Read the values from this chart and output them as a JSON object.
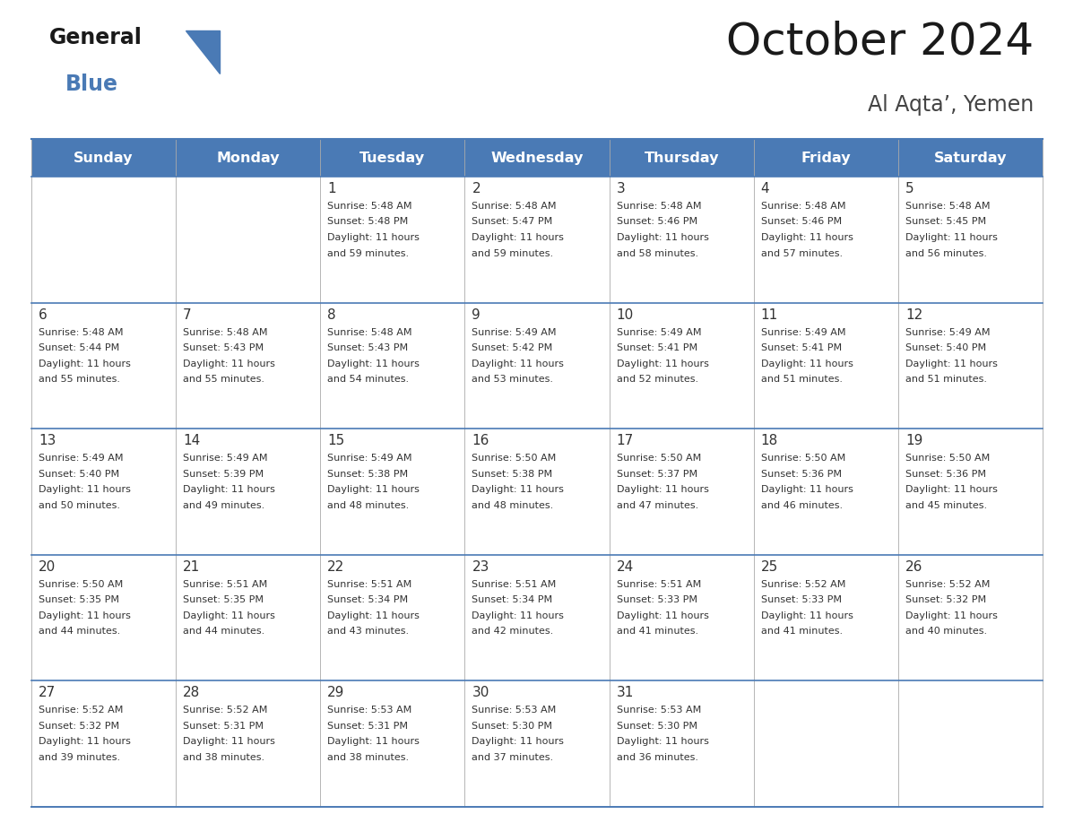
{
  "title": "October 2024",
  "subtitle": "Al Aqta’, Yemen",
  "header_bg": "#4a7ab5",
  "header_text_color": "#ffffff",
  "cell_bg": "#ffffff",
  "text_color": "#333333",
  "line_color": "#4a7ab5",
  "days_of_week": [
    "Sunday",
    "Monday",
    "Tuesday",
    "Wednesday",
    "Thursday",
    "Friday",
    "Saturday"
  ],
  "calendar": [
    [
      {
        "day": "",
        "sunrise": "",
        "sunset": "",
        "daylight": ""
      },
      {
        "day": "",
        "sunrise": "",
        "sunset": "",
        "daylight": ""
      },
      {
        "day": "1",
        "sunrise": "5:48 AM",
        "sunset": "5:48 PM",
        "daylight": "11 hours and 59 minutes."
      },
      {
        "day": "2",
        "sunrise": "5:48 AM",
        "sunset": "5:47 PM",
        "daylight": "11 hours and 59 minutes."
      },
      {
        "day": "3",
        "sunrise": "5:48 AM",
        "sunset": "5:46 PM",
        "daylight": "11 hours and 58 minutes."
      },
      {
        "day": "4",
        "sunrise": "5:48 AM",
        "sunset": "5:46 PM",
        "daylight": "11 hours and 57 minutes."
      },
      {
        "day": "5",
        "sunrise": "5:48 AM",
        "sunset": "5:45 PM",
        "daylight": "11 hours and 56 minutes."
      }
    ],
    [
      {
        "day": "6",
        "sunrise": "5:48 AM",
        "sunset": "5:44 PM",
        "daylight": "11 hours and 55 minutes."
      },
      {
        "day": "7",
        "sunrise": "5:48 AM",
        "sunset": "5:43 PM",
        "daylight": "11 hours and 55 minutes."
      },
      {
        "day": "8",
        "sunrise": "5:48 AM",
        "sunset": "5:43 PM",
        "daylight": "11 hours and 54 minutes."
      },
      {
        "day": "9",
        "sunrise": "5:49 AM",
        "sunset": "5:42 PM",
        "daylight": "11 hours and 53 minutes."
      },
      {
        "day": "10",
        "sunrise": "5:49 AM",
        "sunset": "5:41 PM",
        "daylight": "11 hours and 52 minutes."
      },
      {
        "day": "11",
        "sunrise": "5:49 AM",
        "sunset": "5:41 PM",
        "daylight": "11 hours and 51 minutes."
      },
      {
        "day": "12",
        "sunrise": "5:49 AM",
        "sunset": "5:40 PM",
        "daylight": "11 hours and 51 minutes."
      }
    ],
    [
      {
        "day": "13",
        "sunrise": "5:49 AM",
        "sunset": "5:40 PM",
        "daylight": "11 hours and 50 minutes."
      },
      {
        "day": "14",
        "sunrise": "5:49 AM",
        "sunset": "5:39 PM",
        "daylight": "11 hours and 49 minutes."
      },
      {
        "day": "15",
        "sunrise": "5:49 AM",
        "sunset": "5:38 PM",
        "daylight": "11 hours and 48 minutes."
      },
      {
        "day": "16",
        "sunrise": "5:50 AM",
        "sunset": "5:38 PM",
        "daylight": "11 hours and 48 minutes."
      },
      {
        "day": "17",
        "sunrise": "5:50 AM",
        "sunset": "5:37 PM",
        "daylight": "11 hours and 47 minutes."
      },
      {
        "day": "18",
        "sunrise": "5:50 AM",
        "sunset": "5:36 PM",
        "daylight": "11 hours and 46 minutes."
      },
      {
        "day": "19",
        "sunrise": "5:50 AM",
        "sunset": "5:36 PM",
        "daylight": "11 hours and 45 minutes."
      }
    ],
    [
      {
        "day": "20",
        "sunrise": "5:50 AM",
        "sunset": "5:35 PM",
        "daylight": "11 hours and 44 minutes."
      },
      {
        "day": "21",
        "sunrise": "5:51 AM",
        "sunset": "5:35 PM",
        "daylight": "11 hours and 44 minutes."
      },
      {
        "day": "22",
        "sunrise": "5:51 AM",
        "sunset": "5:34 PM",
        "daylight": "11 hours and 43 minutes."
      },
      {
        "day": "23",
        "sunrise": "5:51 AM",
        "sunset": "5:34 PM",
        "daylight": "11 hours and 42 minutes."
      },
      {
        "day": "24",
        "sunrise": "5:51 AM",
        "sunset": "5:33 PM",
        "daylight": "11 hours and 41 minutes."
      },
      {
        "day": "25",
        "sunrise": "5:52 AM",
        "sunset": "5:33 PM",
        "daylight": "11 hours and 41 minutes."
      },
      {
        "day": "26",
        "sunrise": "5:52 AM",
        "sunset": "5:32 PM",
        "daylight": "11 hours and 40 minutes."
      }
    ],
    [
      {
        "day": "27",
        "sunrise": "5:52 AM",
        "sunset": "5:32 PM",
        "daylight": "11 hours and 39 minutes."
      },
      {
        "day": "28",
        "sunrise": "5:52 AM",
        "sunset": "5:31 PM",
        "daylight": "11 hours and 38 minutes."
      },
      {
        "day": "29",
        "sunrise": "5:53 AM",
        "sunset": "5:31 PM",
        "daylight": "11 hours and 38 minutes."
      },
      {
        "day": "30",
        "sunrise": "5:53 AM",
        "sunset": "5:30 PM",
        "daylight": "11 hours and 37 minutes."
      },
      {
        "day": "31",
        "sunrise": "5:53 AM",
        "sunset": "5:30 PM",
        "daylight": "11 hours and 36 minutes."
      },
      {
        "day": "",
        "sunrise": "",
        "sunset": "",
        "daylight": ""
      },
      {
        "day": "",
        "sunrise": "",
        "sunset": "",
        "daylight": ""
      }
    ]
  ]
}
